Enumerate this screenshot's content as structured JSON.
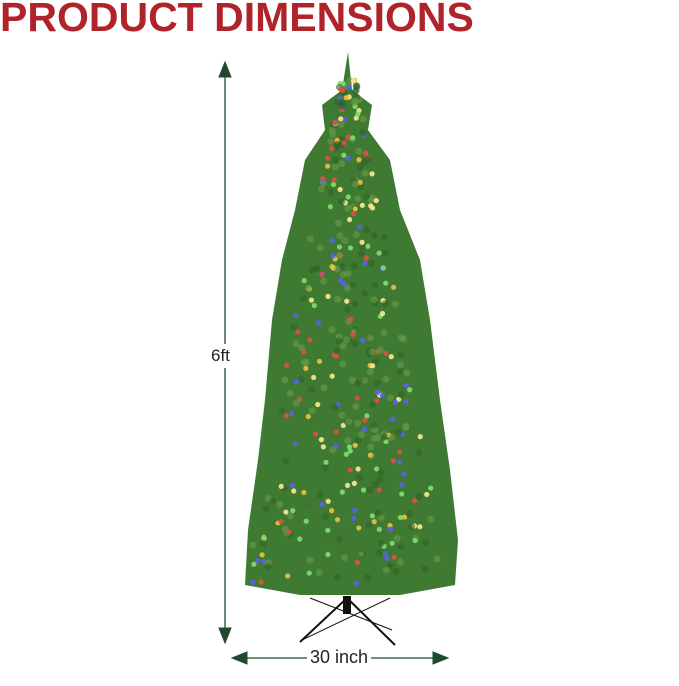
{
  "title": "PRODUCT DIMENSIONS",
  "dimensions": {
    "height_label": "6ft",
    "width_label": "30 inch"
  },
  "colors": {
    "title": "#b0232a",
    "arrow": "#1f4a2e",
    "tree": "#3f7a32"
  },
  "image": {
    "subject": "tree-illustration"
  }
}
